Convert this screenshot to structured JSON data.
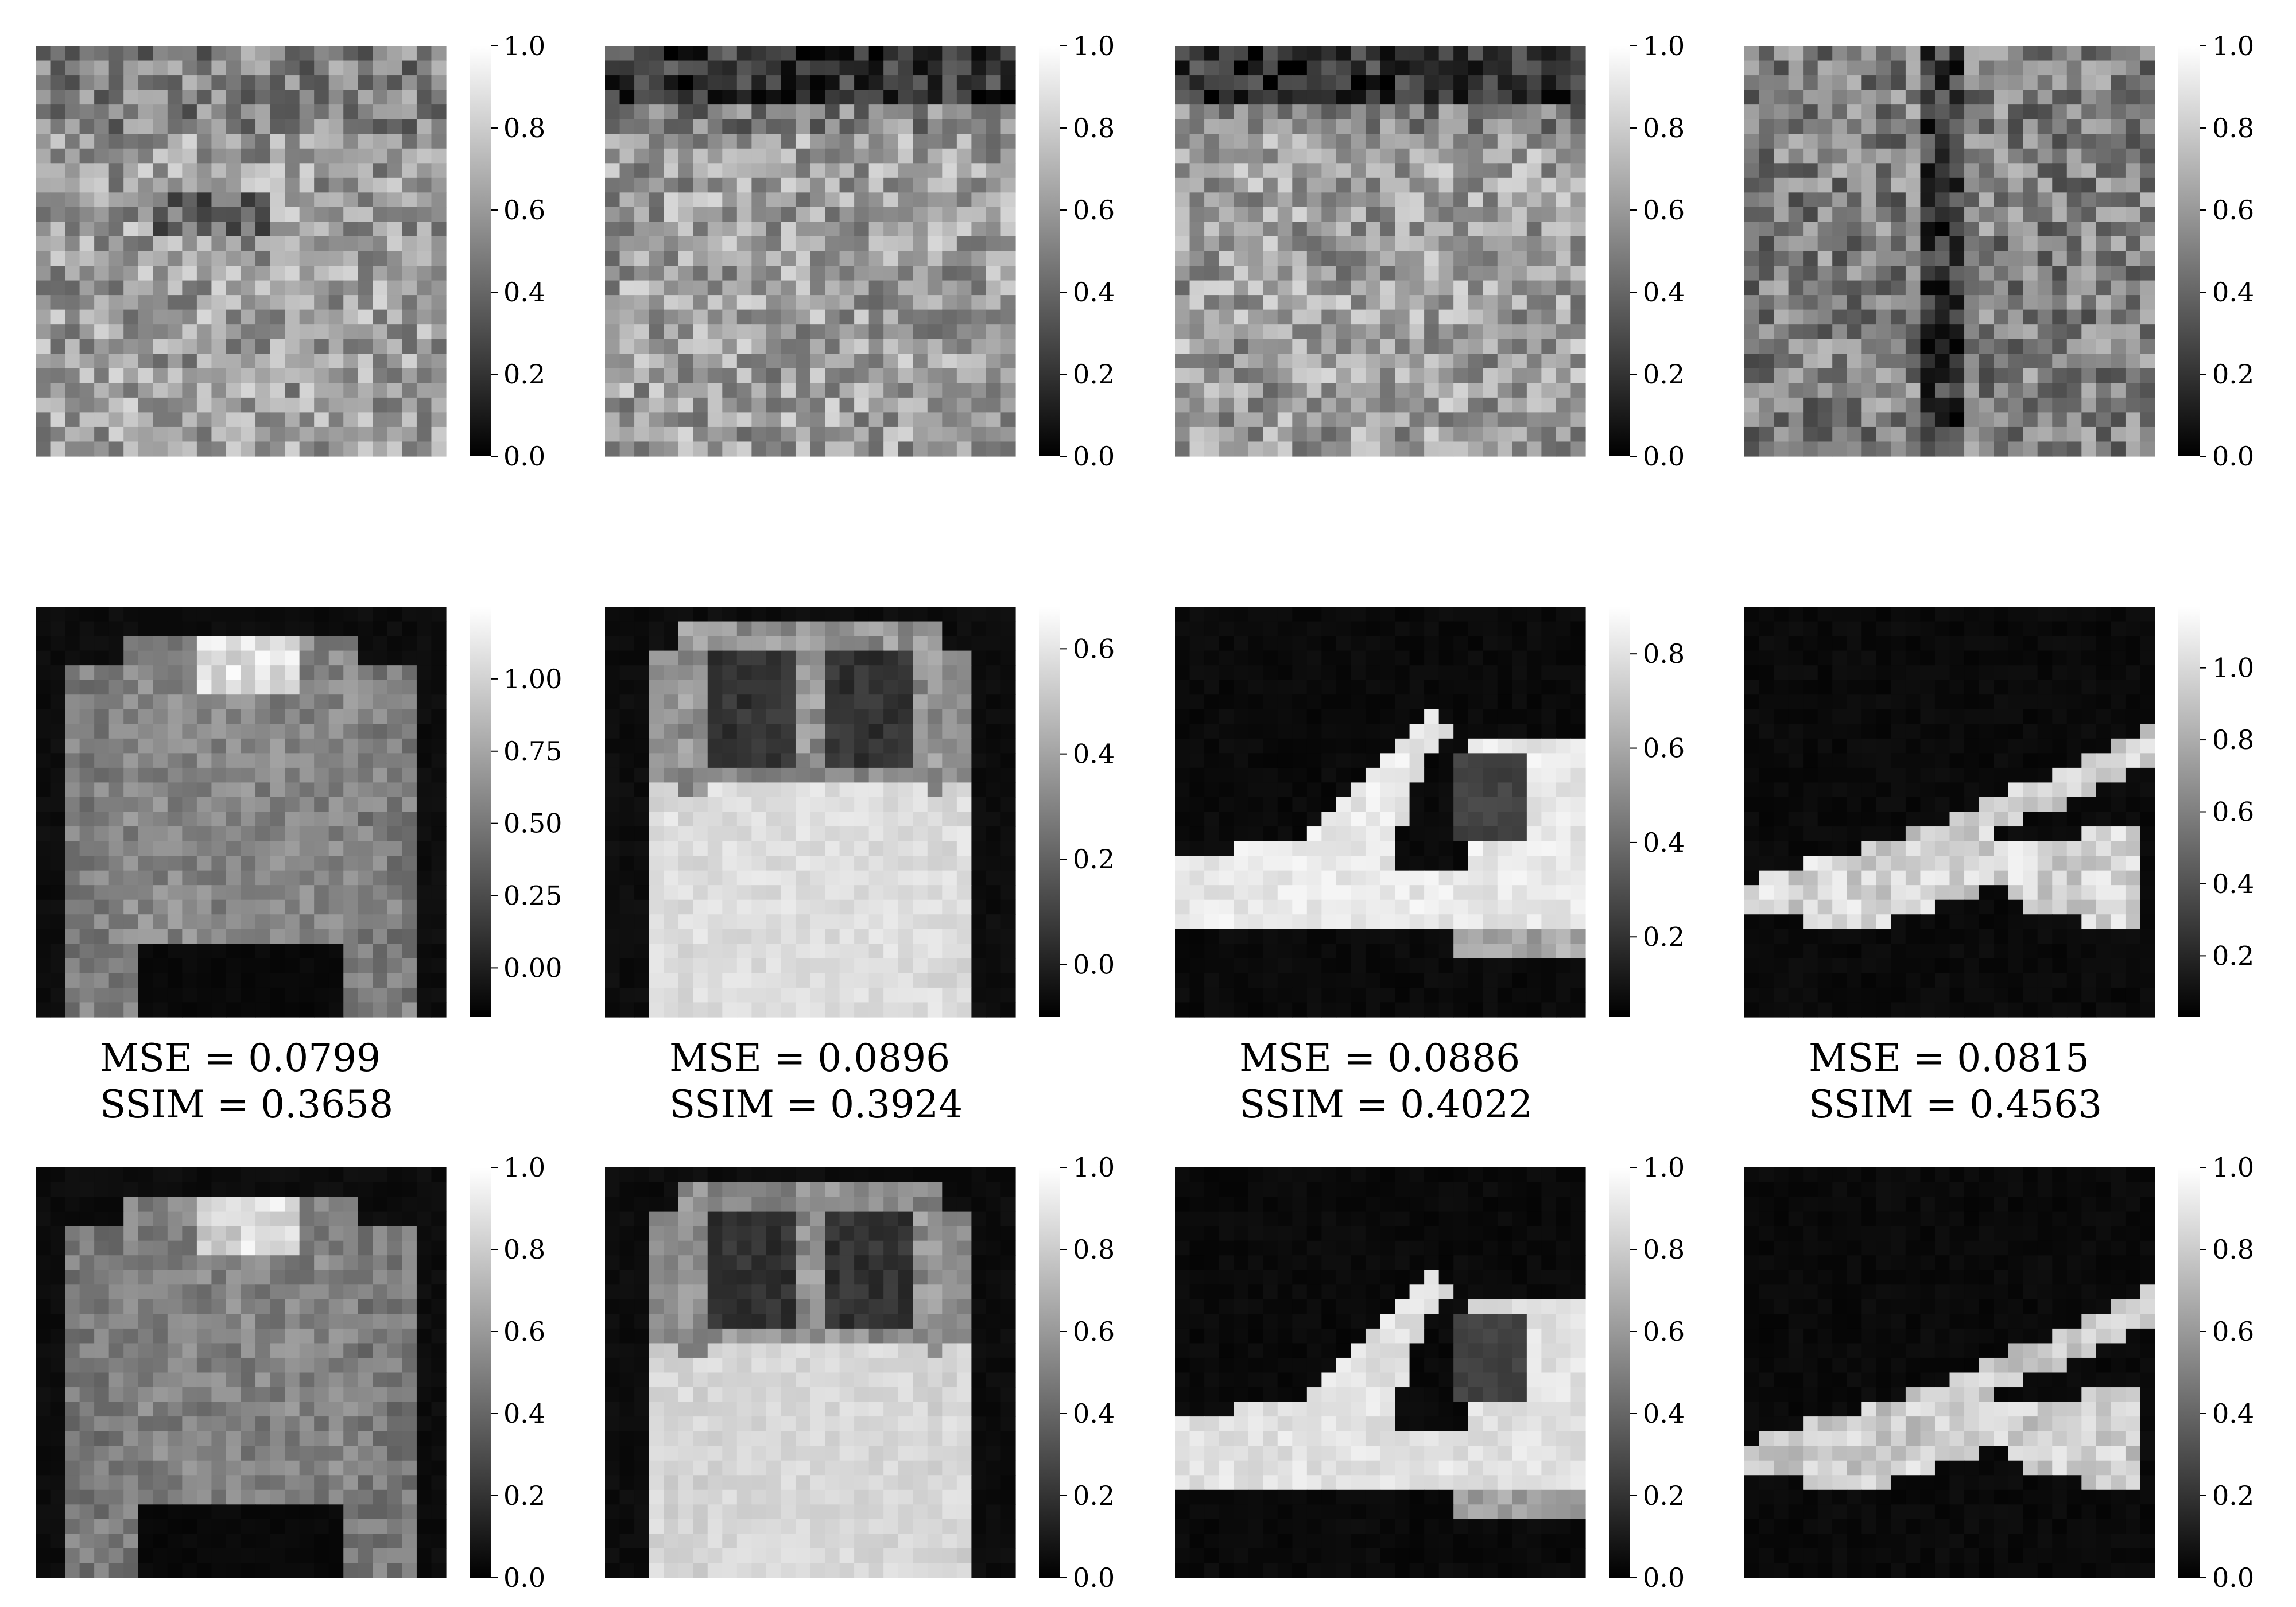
{
  "chart_data": {
    "type": "heatmap",
    "grid": false,
    "colormap": "grayscale (black to white)",
    "rows": [
      {
        "panels": [
          {
            "image": "noise",
            "colorbar": {
              "ticks": [
                "0.0",
                "0.2",
                "0.4",
                "0.6",
                "0.8",
                "1.0"
              ],
              "range": [
                0.0,
                1.0
              ]
            }
          },
          {
            "image": "noise",
            "colorbar": {
              "ticks": [
                "0.0",
                "0.2",
                "0.4",
                "0.6",
                "0.8",
                "1.0"
              ],
              "range": [
                0.0,
                1.0
              ]
            }
          },
          {
            "image": "noise",
            "colorbar": {
              "ticks": [
                "0.0",
                "0.2",
                "0.4",
                "0.6",
                "0.8",
                "1.0"
              ],
              "range": [
                0.0,
                1.0
              ]
            }
          },
          {
            "image": "noise",
            "colorbar": {
              "ticks": [
                "0.0",
                "0.2",
                "0.4",
                "0.6",
                "0.8",
                "1.0"
              ],
              "range": [
                0.0,
                1.0
              ]
            }
          }
        ]
      },
      {
        "panels": [
          {
            "image": "pullover",
            "colorbar": {
              "ticks": [
                "0.00",
                "0.25",
                "0.50",
                "0.75",
                "1.00"
              ],
              "range": [
                -0.17,
                1.25
              ]
            }
          },
          {
            "image": "shirt",
            "colorbar": {
              "ticks": [
                "0.0",
                "0.2",
                "0.4",
                "0.6"
              ],
              "range": [
                -0.1,
                0.68
              ]
            }
          },
          {
            "image": "sandal-a",
            "colorbar": {
              "ticks": [
                "0.2",
                "0.4",
                "0.6",
                "0.8"
              ],
              "range": [
                0.03,
                0.9
              ]
            }
          },
          {
            "image": "sandal-b",
            "colorbar": {
              "ticks": [
                "0.2",
                "0.4",
                "0.6",
                "0.8",
                "1.0"
              ],
              "range": [
                0.03,
                1.17
              ]
            }
          }
        ],
        "metrics": [
          {
            "mse": "MSE = 0.0799",
            "ssim": "SSIM = 0.3658"
          },
          {
            "mse": "MSE = 0.0896",
            "ssim": "SSIM = 0.3924"
          },
          {
            "mse": "MSE = 0.0886",
            "ssim": "SSIM = 0.4022"
          },
          {
            "mse": "MSE = 0.0815",
            "ssim": "SSIM = 0.4563"
          }
        ]
      },
      {
        "panels": [
          {
            "image": "pullover",
            "colorbar": {
              "ticks": [
                "0.0",
                "0.2",
                "0.4",
                "0.6",
                "0.8",
                "1.0"
              ],
              "range": [
                0.0,
                1.0
              ]
            }
          },
          {
            "image": "shirt",
            "colorbar": {
              "ticks": [
                "0.0",
                "0.2",
                "0.4",
                "0.6",
                "0.8",
                "1.0"
              ],
              "range": [
                0.0,
                1.0
              ]
            }
          },
          {
            "image": "sandal-a",
            "colorbar": {
              "ticks": [
                "0.0",
                "0.2",
                "0.4",
                "0.6",
                "0.8",
                "1.0"
              ],
              "range": [
                0.0,
                1.0
              ]
            }
          },
          {
            "image": "sandal-b",
            "colorbar": {
              "ticks": [
                "0.0",
                "0.2",
                "0.4",
                "0.6",
                "0.8",
                "1.0"
              ],
              "range": [
                0.0,
                1.0
              ]
            }
          }
        ]
      }
    ]
  }
}
